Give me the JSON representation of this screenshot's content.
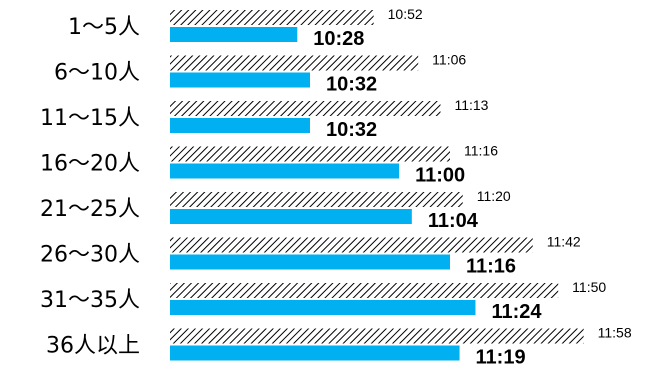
{
  "chart_data": {
    "type": "bar",
    "orientation": "horizontal",
    "categories": [
      "1〜5人",
      "6〜10人",
      "11〜15人",
      "16〜20人",
      "21〜25人",
      "26〜30人",
      "31〜35人",
      "36人以上"
    ],
    "series": [
      {
        "values": [
          "10:52",
          "11:06",
          "11:13",
          "11:16",
          "11:20",
          "11:42",
          "11:50",
          "11:58"
        ],
        "pattern": "hatched",
        "label_style": "small"
      },
      {
        "values": [
          "10:28",
          "10:32",
          "10:32",
          "11:00",
          "11:04",
          "11:16",
          "11:24",
          "11:19"
        ],
        "color": "#00B0F0",
        "label_style": "bold"
      }
    ],
    "value_unit": "hh:mm",
    "xlim": [
      "9:48",
      "12:00"
    ],
    "grid": false,
    "legend": "none"
  }
}
